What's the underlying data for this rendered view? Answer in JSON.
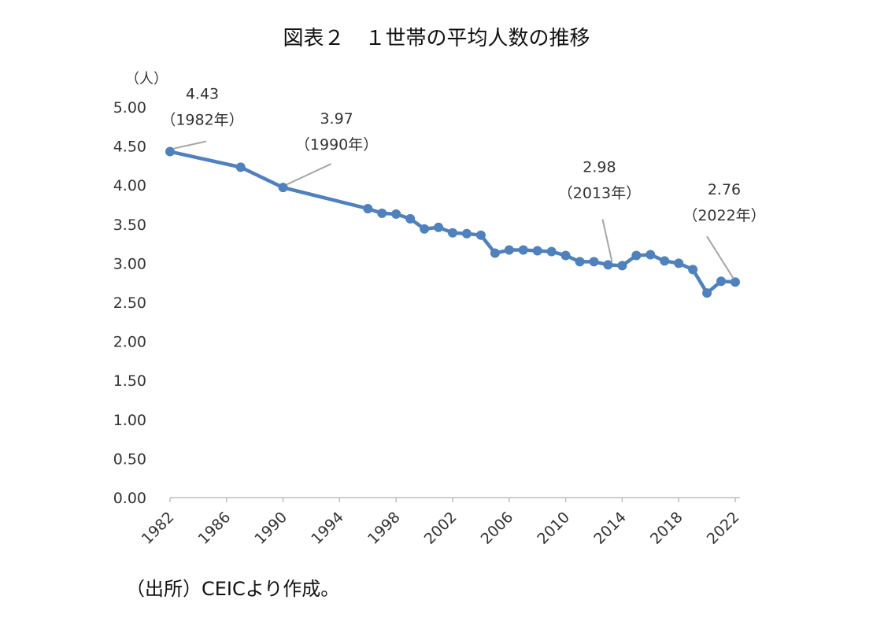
{
  "title": "図表２　１世帯の平均人数の推移",
  "source": "（出所）CEICより作成。",
  "chart_data": {
    "type": "line",
    "unit_label": "（人）",
    "ylim": [
      0,
      5
    ],
    "y_ticks": [
      "0.00",
      "0.50",
      "1.00",
      "1.50",
      "2.00",
      "2.50",
      "3.00",
      "3.50",
      "4.00",
      "4.50",
      "5.00"
    ],
    "x_ticks": [
      "1982",
      "1986",
      "1990",
      "1994",
      "1998",
      "2002",
      "2006",
      "2010",
      "2014",
      "2018",
      "2022"
    ],
    "xlim": [
      1982,
      2022
    ],
    "grid": false,
    "color": "#4f81bd",
    "series": [
      {
        "x": [
          1982,
          1987,
          1990,
          1996,
          1997,
          1998,
          1999,
          2000,
          2001,
          2002,
          2003,
          2004,
          2005,
          2006,
          2007,
          2008,
          2009,
          2010,
          2011,
          2012,
          2013,
          2014,
          2015,
          2016,
          2017,
          2018,
          2019,
          2020,
          2021,
          2022
        ],
        "values": [
          4.43,
          4.23,
          3.97,
          3.7,
          3.64,
          3.63,
          3.57,
          3.44,
          3.46,
          3.39,
          3.38,
          3.36,
          3.13,
          3.17,
          3.17,
          3.16,
          3.15,
          3.1,
          3.02,
          3.02,
          2.98,
          2.97,
          3.1,
          3.11,
          3.03,
          3.0,
          2.92,
          2.62,
          2.77,
          2.76
        ]
      }
    ],
    "annotations": [
      {
        "value": "4.43",
        "sub": "（1982年）",
        "x": 1982,
        "y": 4.43
      },
      {
        "value": "3.97",
        "sub": "（1990年）",
        "x": 1990,
        "y": 3.97
      },
      {
        "value": "2.98",
        "sub": "（2013年）",
        "x": 2013,
        "y": 2.98
      },
      {
        "value": "2.76",
        "sub": "（2022年）",
        "x": 2022,
        "y": 2.76
      }
    ]
  }
}
